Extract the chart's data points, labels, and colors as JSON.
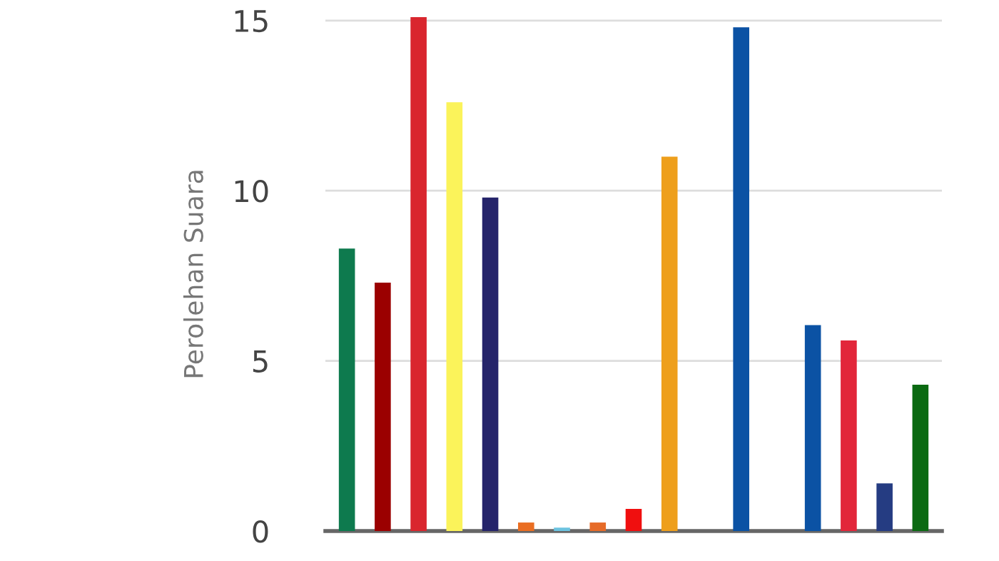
{
  "chart_data": {
    "type": "bar",
    "ylabel": "Perolehan Suara",
    "categories": [
      null,
      null,
      null,
      null,
      null,
      null,
      null,
      null,
      null,
      null,
      null,
      null,
      null,
      null,
      null,
      null,
      null
    ],
    "values": [
      8.3,
      7.3,
      15.1,
      12.6,
      9.8,
      0.25,
      0.1,
      0.25,
      0.65,
      11.0,
      0,
      14.8,
      0,
      6.05,
      5.6,
      1.4,
      4.3
    ],
    "colors": [
      "#0e7a4e",
      "#9b0000",
      "#d9262e",
      "#fbf35a",
      "#25246a",
      "#ea6e22",
      "#6cc3e0",
      "#e66b28",
      "#f00f0f",
      "#ee9f1c",
      "#1c52a0",
      "#0b52a4",
      "#1c52a0",
      "#0b52a4",
      "#e2263a",
      "#253c82",
      "#0b6a12"
    ],
    "ylim": [
      0,
      15.1
    ],
    "yticks": [
      0,
      5,
      10,
      15
    ],
    "grid": "y"
  }
}
